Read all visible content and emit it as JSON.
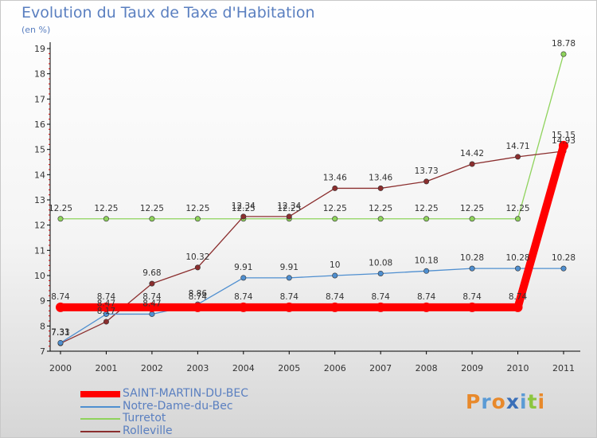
{
  "logo": {
    "text": "Proxiti",
    "colors": [
      "#e8892b",
      "#5b9bd5",
      "#e8892b",
      "#3a6fb8",
      "#5b9bd5",
      "#8cc63f",
      "#e8892b"
    ]
  },
  "chart_data": {
    "type": "line",
    "title": "Evolution du Taux de Taxe d'Habitation",
    "subtitle": "(en %)",
    "x": [
      "2000",
      "2001",
      "2002",
      "2003",
      "2004",
      "2005",
      "2006",
      "2007",
      "2008",
      "2009",
      "2010",
      "2011"
    ],
    "ylim": [
      7,
      19
    ],
    "yticks": [
      7,
      8,
      9,
      10,
      11,
      12,
      13,
      14,
      15,
      16,
      17,
      18,
      19
    ],
    "grid": false,
    "legend": "bottom-left",
    "series": [
      {
        "name": "SAINT-MARTIN-DU-BEC",
        "color": "#ff0000",
        "values": [
          8.74,
          8.74,
          8.74,
          8.74,
          8.74,
          8.74,
          8.74,
          8.74,
          8.74,
          8.74,
          8.74,
          15.15
        ],
        "labels": [
          "8.74",
          "8.74",
          "8.74",
          "8.74",
          "8.74",
          "8.74",
          "8.74",
          "8.74",
          "8.74",
          "8.74",
          "8.74",
          "15.15"
        ]
      },
      {
        "name": "Notre-Dame-du-Bec",
        "color": "#4f8fd0",
        "values": [
          7.33,
          8.47,
          8.47,
          8.86,
          9.91,
          9.91,
          10,
          10.08,
          10.18,
          10.28,
          10.28,
          10.28
        ],
        "labels": [
          "7.33",
          "8.47",
          "8.47",
          "8.86",
          "9.91",
          "9.91",
          "10",
          "10.08",
          "10.18",
          "10.28",
          "10.28",
          "10.28"
        ]
      },
      {
        "name": "Turretot",
        "color": "#8fd35c",
        "values": [
          12.25,
          12.25,
          12.25,
          12.25,
          12.25,
          12.25,
          12.25,
          12.25,
          12.25,
          12.25,
          12.25,
          18.78
        ],
        "labels": [
          "12.25",
          "12.25",
          "12.25",
          "12.25",
          "12.25",
          "12.25",
          "12.25",
          "12.25",
          "12.25",
          "12.25",
          "12.25",
          "18.78"
        ]
      },
      {
        "name": "Rolleville",
        "color": "#8b2e2e",
        "values": [
          7.31,
          8.17,
          9.68,
          10.32,
          12.34,
          12.34,
          13.46,
          13.46,
          13.73,
          14.42,
          14.71,
          14.93
        ],
        "labels": [
          "7.31",
          "8.17",
          "9.68",
          "10.32",
          "12.34",
          "12.34",
          "13.46",
          "13.46",
          "13.73",
          "14.42",
          "14.71",
          "14.93"
        ]
      }
    ]
  }
}
